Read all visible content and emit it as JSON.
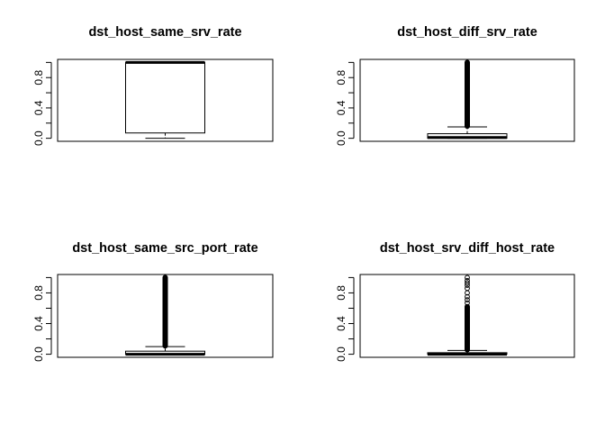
{
  "chart_data": [
    {
      "type": "boxplot",
      "title": "dst_host_same_srv_rate",
      "ylim": [
        0,
        1
      ],
      "yticks": [
        "0.0",
        "0.4",
        "0.8"
      ],
      "box": {
        "whisker_low": 0.0,
        "q1": 0.07,
        "median": 1.0,
        "q3": 1.0,
        "whisker_high": 1.0
      },
      "outliers": [],
      "dense_outlier_band": null
    },
    {
      "type": "boxplot",
      "title": "dst_host_diff_srv_rate",
      "ylim": [
        0,
        1
      ],
      "yticks": [
        "0.0",
        "0.4",
        "0.8"
      ],
      "box": {
        "whisker_low": 0.0,
        "q1": 0.0,
        "median": 0.01,
        "q3": 0.06,
        "whisker_high": 0.15
      },
      "outliers": [],
      "dense_outlier_band": [
        0.16,
        1.0
      ]
    },
    {
      "type": "boxplot",
      "title": "dst_host_same_src_port_rate",
      "ylim": [
        0,
        1
      ],
      "yticks": [
        "0.0",
        "0.4",
        "0.8"
      ],
      "box": {
        "whisker_low": 0.0,
        "q1": 0.0,
        "median": 0.0,
        "q3": 0.04,
        "whisker_high": 0.1
      },
      "outliers": [],
      "dense_outlier_band": [
        0.11,
        1.0
      ]
    },
    {
      "type": "boxplot",
      "title": "dst_host_srv_diff_host_rate",
      "ylim": [
        0,
        1
      ],
      "yticks": [
        "0.0",
        "0.4",
        "0.8"
      ],
      "box": {
        "whisker_low": 0.0,
        "q1": 0.0,
        "median": 0.0,
        "q3": 0.02,
        "whisker_high": 0.05
      },
      "outliers": [
        0.67,
        0.71,
        0.75,
        0.8,
        0.86,
        0.9,
        0.93,
        0.96,
        1.0
      ],
      "dense_outlier_band": [
        0.06,
        0.62
      ]
    }
  ]
}
